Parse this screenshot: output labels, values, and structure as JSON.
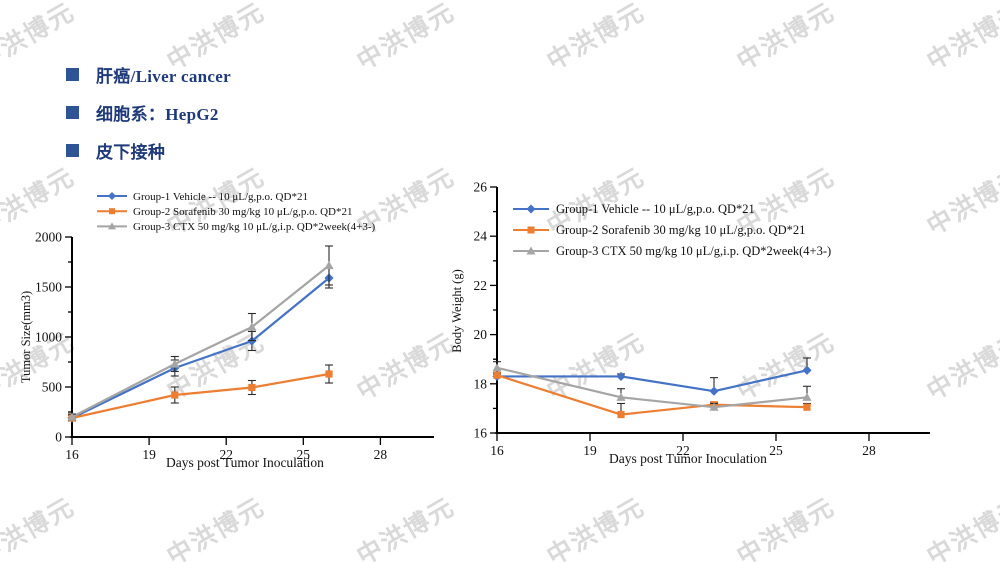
{
  "page": {
    "background": "#ffffff"
  },
  "watermark": {
    "text": "中洪博元",
    "color": "#c3c3c3",
    "opacity": 0.62,
    "rotation_deg": -30,
    "grid": {
      "x_start": 25,
      "x_step": 190,
      "cols": 6,
      "y_start": 35,
      "y_step": 165,
      "rows": 4
    }
  },
  "bullets": {
    "text_color": "#1f3a7b",
    "square_color": "#2f5496",
    "items": [
      {
        "label": "肝癌/Liver cancer"
      },
      {
        "label": "细胞系：HepG2"
      },
      {
        "label": "皮下接种"
      }
    ]
  },
  "chart_data": [
    {
      "type": "line",
      "title": "",
      "xlabel": "Days post Tumor Inoculation",
      "ylabel": "Tumor Size(mm3)",
      "x": [
        16,
        20,
        23,
        26
      ],
      "x_ticks": [
        16,
        19,
        22,
        25,
        28
      ],
      "xlim": [
        16,
        30
      ],
      "y_ticks": [
        0,
        500,
        1000,
        1500,
        2000
      ],
      "y_minor_step": 250,
      "ylim": [
        0,
        2000
      ],
      "grid": false,
      "legend_position": "above-left",
      "error_bars": "symmetric",
      "series": [
        {
          "name": "Group-1 Vehicle -- 10 μL/g,p.o. QD*21",
          "color": "#4472C4",
          "marker": "diamond",
          "values": [
            190,
            690,
            960,
            1590
          ],
          "err": [
            30,
            80,
            95,
            100
          ]
        },
        {
          "name": "Group-2 Sorafenib 30 mg/kg 10 μL/g,p.o. QD*21",
          "color": "#ED7D31",
          "marker": "square",
          "values": [
            190,
            420,
            495,
            630
          ],
          "err": [
            25,
            80,
            70,
            90
          ]
        },
        {
          "name": "Group-3 CTX 50 mg/kg 10 μL/g,i.p. QD*2week(4+3-)",
          "color": "#A5A5A5",
          "marker": "triangle",
          "values": [
            200,
            730,
            1100,
            1715
          ],
          "err": [
            30,
            75,
            135,
            195
          ]
        }
      ]
    },
    {
      "type": "line",
      "title": "",
      "xlabel": "Days post Tumor Inoculation",
      "ylabel": "Body Weight (g)",
      "x": [
        16,
        20,
        23,
        26
      ],
      "x_ticks": [
        16,
        19,
        22,
        25,
        28
      ],
      "xlim": [
        16,
        30
      ],
      "y_ticks": [
        16,
        18,
        20,
        22,
        24,
        26
      ],
      "y_minor_step": 1,
      "ylim": [
        16,
        26
      ],
      "grid": false,
      "legend_position": "inside-top-left",
      "error_bars": "upper",
      "series": [
        {
          "name": "Group-1 Vehicle -- 10 μL/g,p.o. QD*21",
          "color": "#4472C4",
          "marker": "diamond",
          "values": [
            18.3,
            18.3,
            17.7,
            18.55
          ],
          "err": [
            0.1,
            0.1,
            0.55,
            0.5
          ]
        },
        {
          "name": "Group-2 Sorafenib 30 mg/kg 10 μL/g,p.o. QD*21",
          "color": "#ED7D31",
          "marker": "square",
          "values": [
            18.35,
            16.75,
            17.15,
            17.05
          ],
          "err": [
            0.1,
            0.45,
            0.1,
            0.15
          ]
        },
        {
          "name": "Group-3 CTX 50 mg/kg 10 μL/g,i.p. QD*2week(4+3-)",
          "color": "#A5A5A5",
          "marker": "triangle",
          "values": [
            18.65,
            17.45,
            17.05,
            17.45
          ],
          "err": [
            0.25,
            0.35,
            0.15,
            0.45
          ]
        }
      ]
    }
  ]
}
